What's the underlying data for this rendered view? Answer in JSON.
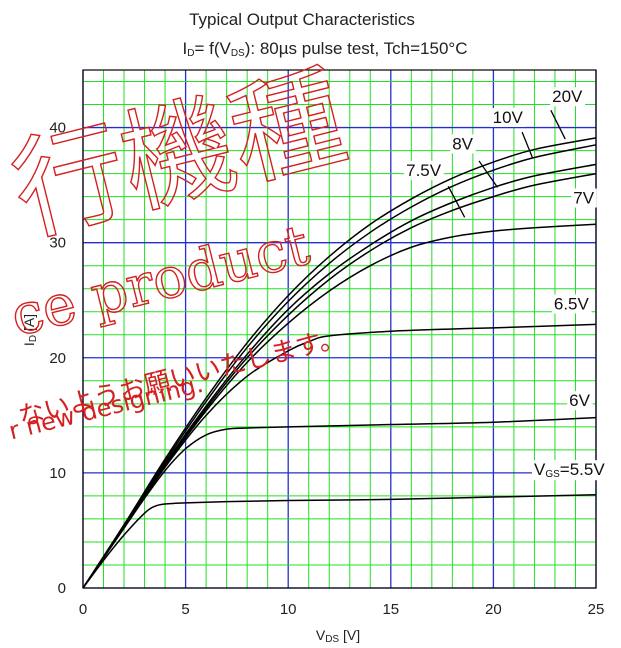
{
  "chart_data": {
    "type": "line",
    "title_line1": "Typical Output Characteristics",
    "title_line2": "I<sub>D</sub>= f(V<sub>DS</sub>): 80µs pulse test, Tch=150°C",
    "title_line2_parts": [
      "I",
      "D",
      "= f(V",
      "DS",
      "): 80µs pulse test, Tch=150°C"
    ],
    "xlabel_parts": [
      "V",
      "DS",
      " [V]"
    ],
    "ylabel_parts": [
      "I",
      "D",
      " [A]"
    ],
    "xlim": [
      0,
      25
    ],
    "ylim": [
      0,
      45
    ],
    "x_ticks": [
      0,
      5,
      10,
      15,
      20,
      25
    ],
    "y_ticks": [
      0,
      10,
      20,
      30,
      40
    ],
    "grid": true,
    "series": [
      {
        "name": "VGS=5.5V",
        "label": "V<sub>GS</sub>=5.5V",
        "x": [
          0,
          1,
          2,
          3,
          3.5,
          4,
          5,
          7,
          10,
          15,
          20,
          25
        ],
        "y": [
          0,
          2.4,
          4.6,
          6.5,
          7.1,
          7.3,
          7.4,
          7.5,
          7.6,
          7.7,
          7.9,
          8.1
        ]
      },
      {
        "name": "6V",
        "label": "6V",
        "x": [
          0,
          1,
          2,
          3,
          4,
          5,
          6,
          7,
          8,
          10,
          15,
          20,
          25
        ],
        "y": [
          0,
          2.6,
          5.2,
          7.8,
          10.2,
          12.1,
          13.3,
          13.8,
          13.9,
          14.0,
          14.2,
          14.4,
          14.8
        ]
      },
      {
        "name": "6.5V",
        "label": "6.5V",
        "x": [
          0,
          2,
          4,
          6,
          8,
          10,
          11,
          12,
          15,
          18,
          20,
          25
        ],
        "y": [
          0,
          5.3,
          10.5,
          15.0,
          18.4,
          20.6,
          21.4,
          21.9,
          22.3,
          22.5,
          22.6,
          22.9
        ]
      },
      {
        "name": "7V",
        "label": "7V",
        "x": [
          0,
          2,
          4,
          6,
          8,
          10,
          12,
          14,
          16,
          18,
          20,
          22,
          25
        ],
        "y": [
          0,
          5.3,
          10.6,
          15.4,
          19.6,
          23.0,
          25.8,
          28.0,
          29.6,
          30.5,
          31.0,
          31.3,
          31.6
        ]
      },
      {
        "name": "7.5V",
        "label": "7.5V",
        "x": [
          0,
          2,
          4,
          6,
          8,
          10,
          12,
          14,
          16,
          18,
          20,
          22,
          25
        ],
        "y": [
          0,
          5.3,
          10.7,
          15.6,
          20.0,
          23.7,
          26.8,
          29.3,
          31.3,
          32.8,
          34.0,
          35.0,
          36.0
        ]
      },
      {
        "name": "8V",
        "label": "8V",
        "x": [
          0,
          2,
          4,
          6,
          8,
          10,
          12,
          14,
          16,
          18,
          20,
          22,
          25
        ],
        "y": [
          0,
          5.3,
          10.8,
          15.8,
          20.3,
          24.2,
          27.3,
          29.8,
          31.9,
          33.5,
          34.8,
          35.8,
          36.8
        ]
      },
      {
        "name": "10V",
        "label": "10V",
        "x": [
          0,
          2,
          4,
          6,
          8,
          10,
          12,
          14,
          16,
          18,
          20,
          22,
          25
        ],
        "y": [
          0,
          5.4,
          11.0,
          16.2,
          20.9,
          24.9,
          28.2,
          30.9,
          33.1,
          34.9,
          36.3,
          37.4,
          38.5
        ]
      },
      {
        "name": "20V",
        "label": "20V",
        "x": [
          0,
          2,
          4,
          6,
          8,
          10,
          12,
          14,
          16,
          18,
          20,
          22,
          25
        ],
        "y": [
          0,
          5.5,
          11.2,
          16.5,
          21.3,
          25.4,
          28.8,
          31.6,
          33.8,
          35.6,
          37.0,
          38.1,
          39.1
        ]
      }
    ],
    "label_positions": [
      {
        "series": "VGS=5.5V",
        "text_parts": [
          "V",
          "GS",
          "=5.5V"
        ],
        "x": 23.7,
        "y": 9.8,
        "leader": null
      },
      {
        "series": "6V",
        "text_parts": [
          "6V"
        ],
        "x": 24.2,
        "y": 15.8,
        "leader": null
      },
      {
        "series": "6.5V",
        "text_parts": [
          "6.5V"
        ],
        "x": 23.8,
        "y": 24.2,
        "leader": null
      },
      {
        "series": "7V",
        "text_parts": [
          "7V"
        ],
        "x": 24.4,
        "y": 33.4,
        "leader": null
      },
      {
        "series": "7.5V",
        "text_parts": [
          "7.5V"
        ],
        "x": 16.6,
        "y": 35.8,
        "leader": [
          17.8,
          34.9,
          18.6,
          32.2
        ]
      },
      {
        "series": "8V",
        "text_parts": [
          "8V"
        ],
        "x": 18.5,
        "y": 38.1,
        "leader": [
          19.3,
          37.1,
          20.2,
          34.8
        ]
      },
      {
        "series": "10V",
        "text_parts": [
          "10V"
        ],
        "x": 20.7,
        "y": 40.4,
        "leader": [
          21.4,
          39.6,
          21.9,
          37.4
        ]
      },
      {
        "series": "20V",
        "text_parts": [
          "20V"
        ],
        "x": 23.6,
        "y": 42.2,
        "leader": [
          22.8,
          41.5,
          23.5,
          39.0
        ]
      }
    ],
    "colors": {
      "minor_grid": "#22e022",
      "major_grid": "#2030d0",
      "curve": "#000000",
      "frame": "#000000",
      "watermark": "#d42020",
      "background": "#ffffff"
    },
    "watermark_texts": [
      "行機種",
      "ce product",
      "ないようお願いいたします。",
      "r new designing."
    ]
  }
}
